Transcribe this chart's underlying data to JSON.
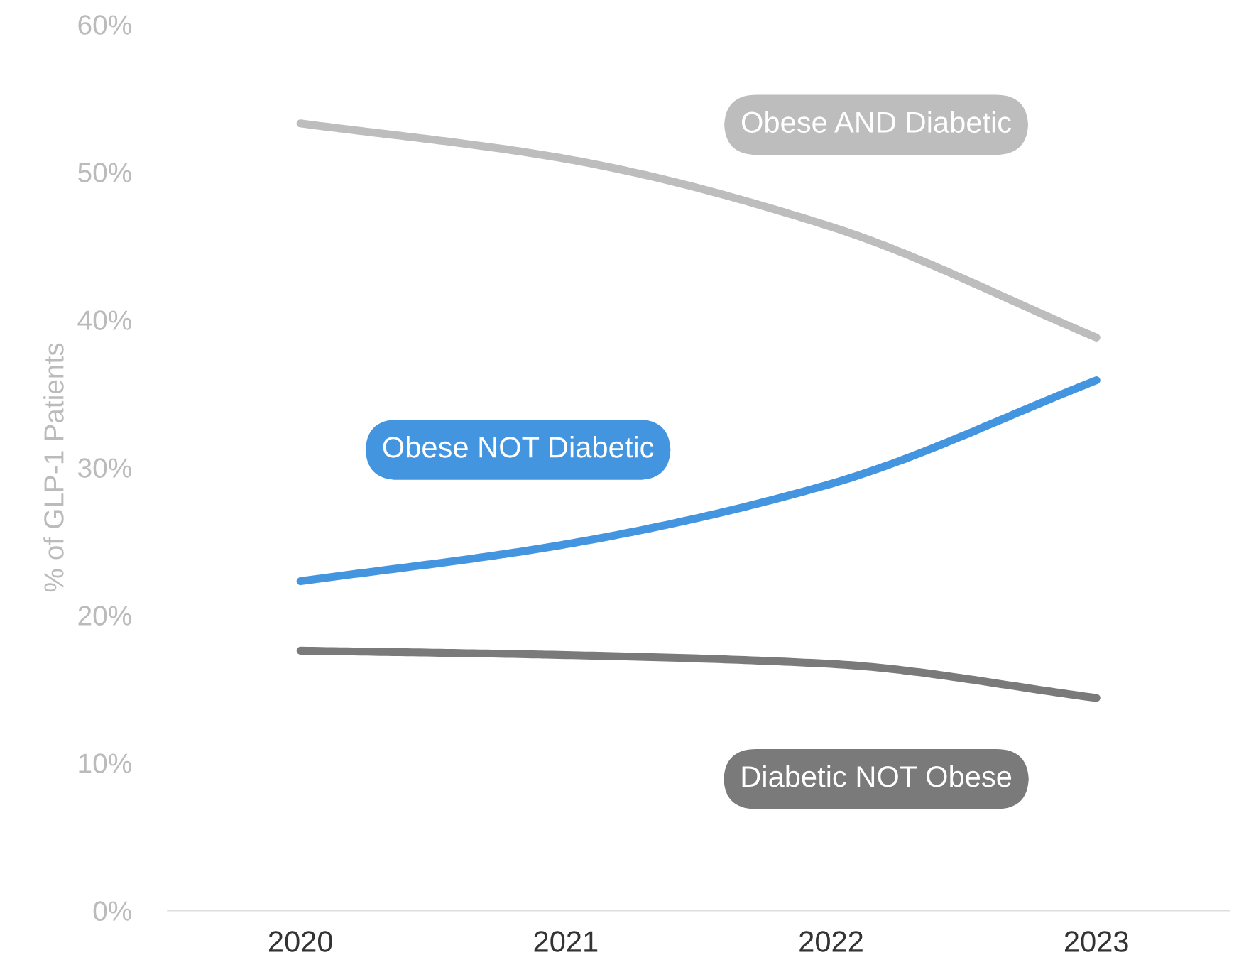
{
  "chart_data": {
    "type": "line",
    "ylabel": "% of GLP-1 Patients",
    "categories": [
      "2020",
      "2021",
      "2022",
      "2023"
    ],
    "series": [
      {
        "name": "Obese AND Diabetic",
        "color": "#bdbdbd",
        "values": [
          53.3,
          50.9,
          46.3,
          38.8
        ]
      },
      {
        "name": "Obese NOT Diabetic",
        "color": "#4495e0",
        "values": [
          22.3,
          24.8,
          28.9,
          35.9
        ]
      },
      {
        "name": "Diabetic NOT Obese",
        "color": "#7a7a7a",
        "values": [
          17.6,
          17.3,
          16.7,
          14.4
        ]
      }
    ],
    "ylim": [
      0,
      60
    ],
    "yticks": [
      {
        "value": 0,
        "label": "0%"
      },
      {
        "value": 10,
        "label": "10%"
      },
      {
        "value": 20,
        "label": "20%"
      },
      {
        "value": 30,
        "label": "30%"
      },
      {
        "value": 40,
        "label": "40%"
      },
      {
        "value": 50,
        "label": "50%"
      },
      {
        "value": 60,
        "label": "60%"
      }
    ],
    "grid": false,
    "legend": false,
    "marker": "none",
    "line_style": "solid"
  }
}
